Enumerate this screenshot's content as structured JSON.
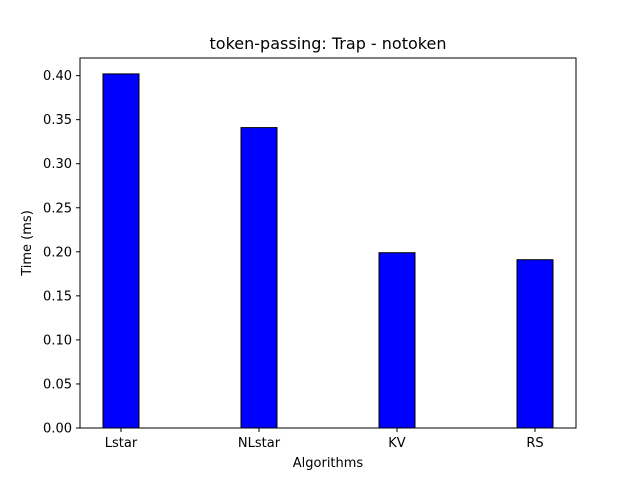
{
  "chart_data": {
    "type": "bar",
    "title": "token-passing: Trap - notoken",
    "xlabel": "Algorithms",
    "ylabel": "Time (ms)",
    "categories": [
      "Lstar",
      "NLstar",
      "KV",
      "RS"
    ],
    "values": [
      0.402,
      0.341,
      0.199,
      0.191
    ],
    "ylim": [
      0,
      0.42
    ],
    "yticks": [
      0.0,
      0.05,
      0.1,
      0.15,
      0.2,
      0.25,
      0.3,
      0.35,
      0.4
    ],
    "ytick_labels": [
      "0.00",
      "0.05",
      "0.10",
      "0.15",
      "0.20",
      "0.25",
      "0.30",
      "0.35",
      "0.40"
    ],
    "bar_color": "#0000ff",
    "bar_edge_color": "#000000",
    "grid": false,
    "legend": "none"
  }
}
